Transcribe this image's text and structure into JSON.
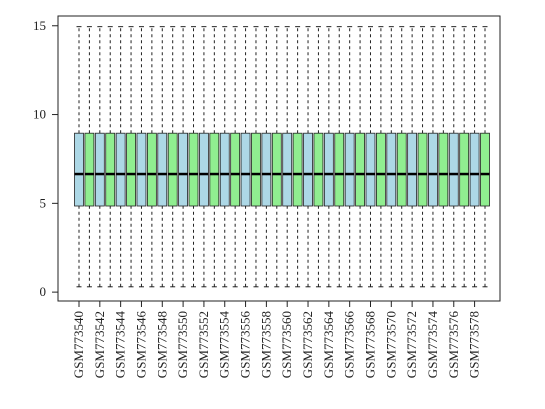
{
  "chart_data": {
    "type": "boxplot",
    "categories": [
      "GSM773540",
      null,
      "GSM773542",
      null,
      "GSM773544",
      null,
      "GSM773546",
      null,
      "GSM773548",
      null,
      "GSM773550",
      null,
      "GSM773552",
      null,
      "GSM773554",
      null,
      "GSM773556",
      null,
      "GSM773558",
      null,
      "GSM773560",
      null,
      "GSM773562",
      null,
      "GSM773564",
      null,
      "GSM773566",
      null,
      "GSM773568",
      null,
      "GSM773570",
      null,
      "GSM773572",
      null,
      "GSM773574",
      null,
      "GSM773576",
      null,
      "GSM773578",
      null
    ],
    "min": [
      0.3,
      0.3,
      0.3,
      0.3,
      0.3,
      0.3,
      0.3,
      0.3,
      0.3,
      0.3,
      0.3,
      0.3,
      0.3,
      0.3,
      0.3,
      0.3,
      0.3,
      0.3,
      0.3,
      0.3,
      0.3,
      0.3,
      0.3,
      0.3,
      0.3,
      0.3,
      0.3,
      0.3,
      0.3,
      0.3,
      0.3,
      0.3,
      0.3,
      0.3,
      0.3,
      0.3,
      0.3,
      0.3,
      0.3,
      0.3
    ],
    "q1": [
      4.85,
      4.85,
      4.85,
      4.85,
      4.85,
      4.85,
      4.85,
      4.85,
      4.85,
      4.85,
      4.85,
      4.85,
      4.85,
      4.85,
      4.85,
      4.85,
      4.85,
      4.85,
      4.85,
      4.85,
      4.85,
      4.85,
      4.85,
      4.85,
      4.85,
      4.85,
      4.85,
      4.85,
      4.85,
      4.85,
      4.85,
      4.85,
      4.85,
      4.85,
      4.85,
      4.85,
      4.85,
      4.85,
      4.85,
      4.85
    ],
    "median": [
      6.65,
      6.65,
      6.65,
      6.65,
      6.65,
      6.65,
      6.65,
      6.65,
      6.65,
      6.65,
      6.65,
      6.65,
      6.65,
      6.65,
      6.65,
      6.65,
      6.65,
      6.65,
      6.65,
      6.65,
      6.65,
      6.65,
      6.65,
      6.65,
      6.65,
      6.65,
      6.65,
      6.65,
      6.65,
      6.65,
      6.65,
      6.65,
      6.65,
      6.65,
      6.65,
      6.65,
      6.65,
      6.65,
      6.65,
      6.65
    ],
    "q3": [
      8.95,
      8.95,
      8.95,
      8.95,
      8.95,
      8.95,
      8.95,
      8.95,
      8.95,
      8.95,
      8.95,
      8.95,
      8.95,
      8.95,
      8.95,
      8.95,
      8.95,
      8.95,
      8.95,
      8.95,
      8.95,
      8.95,
      8.95,
      8.95,
      8.95,
      8.95,
      8.95,
      8.95,
      8.95,
      8.95,
      8.95,
      8.95,
      8.95,
      8.95,
      8.95,
      8.95,
      8.95,
      8.95,
      8.95,
      8.95
    ],
    "max": [
      14.95,
      14.95,
      14.95,
      14.95,
      14.95,
      14.95,
      14.95,
      14.95,
      14.95,
      14.95,
      14.95,
      14.95,
      14.95,
      14.95,
      14.95,
      14.95,
      14.95,
      14.95,
      14.95,
      14.95,
      14.95,
      14.95,
      14.95,
      14.95,
      14.95,
      14.95,
      14.95,
      14.95,
      14.95,
      14.95,
      14.95,
      14.95,
      14.95,
      14.95,
      14.95,
      14.95,
      14.95,
      14.95,
      14.95,
      14.95
    ],
    "colors": [
      "#add8e6",
      "#90ee90"
    ],
    "ylim": [
      -0.5,
      15.55
    ],
    "yticks": [
      0,
      5,
      10,
      15
    ]
  }
}
